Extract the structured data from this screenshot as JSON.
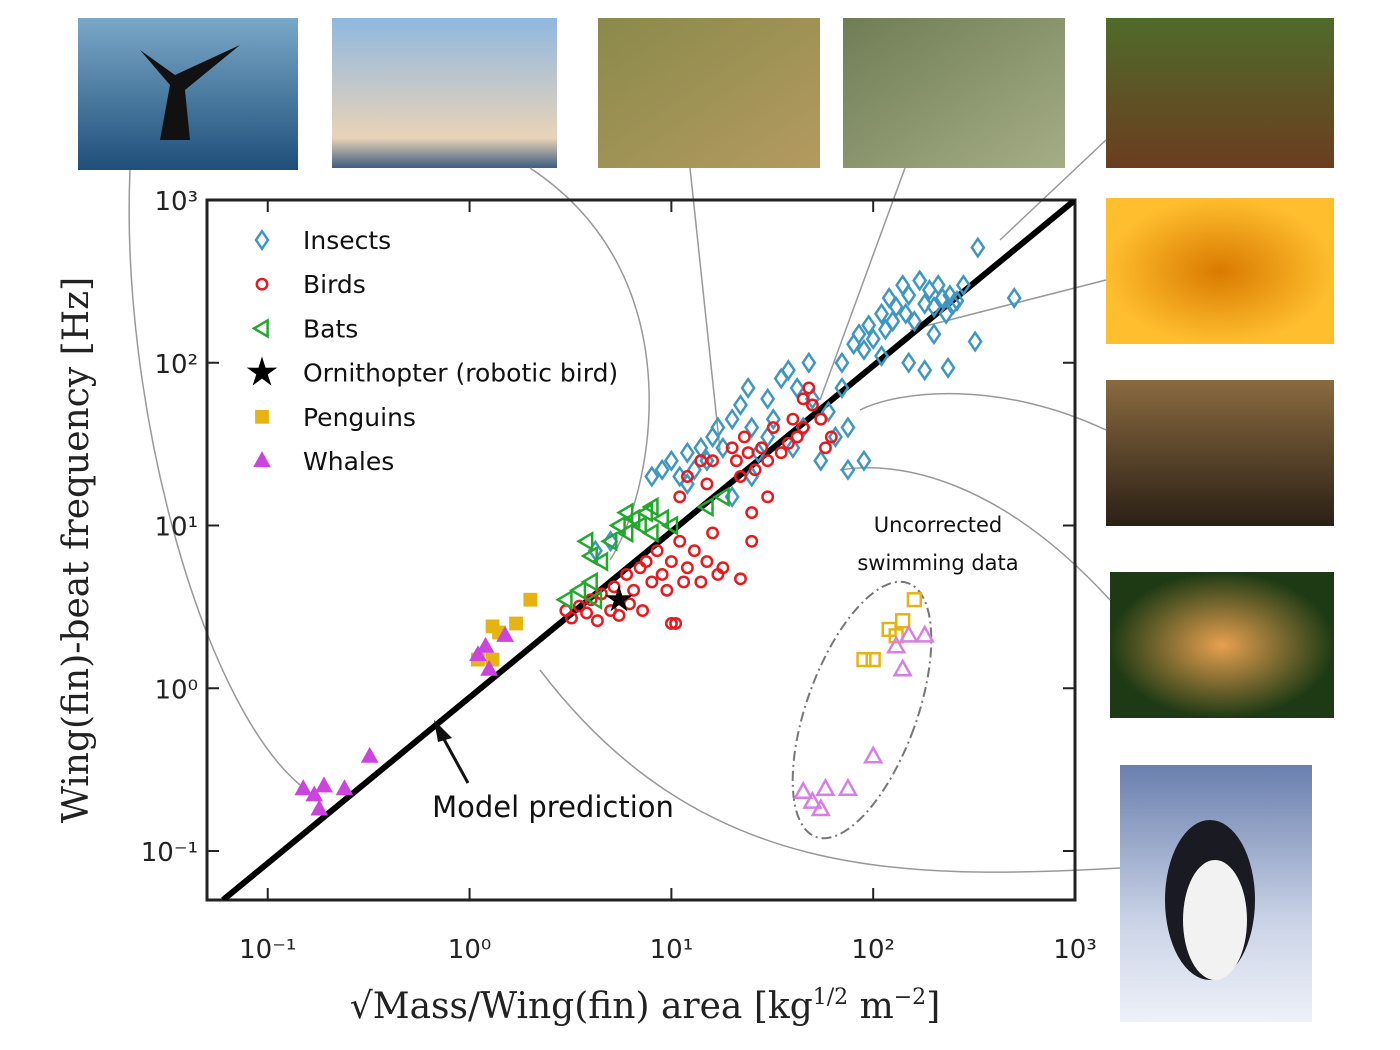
{
  "chart_data": {
    "type": "scatter",
    "x_label": [
      "√Mass/Wing(fin) area [kg",
      "1/2",
      " m",
      "−2",
      "]"
    ],
    "y_label": "Wing(fin)-beat frequency [Hz]",
    "log_x": true,
    "log_y": true,
    "xlim": [
      0.05,
      1000
    ],
    "ylim": [
      0.05,
      1000
    ],
    "xticks": [
      {
        "value": 0.1,
        "label": "10⁻¹"
      },
      {
        "value": 1,
        "label": "10⁰"
      },
      {
        "value": 10,
        "label": "10¹"
      },
      {
        "value": 100,
        "label": "10²"
      },
      {
        "value": 1000,
        "label": "10³"
      }
    ],
    "yticks": [
      {
        "value": 0.1,
        "label": "10⁻¹"
      },
      {
        "value": 1,
        "label": "10⁰"
      },
      {
        "value": 10,
        "label": "10¹"
      },
      {
        "value": 100,
        "label": "10²"
      },
      {
        "value": 1000,
        "label": "10³"
      }
    ],
    "legend": "upper left",
    "series": [
      {
        "name": "Insects",
        "color": "#3d97c2",
        "marker": "diamond",
        "filled": false,
        "x": [
          5,
          4.2,
          9,
          10,
          11,
          12,
          13,
          14,
          15,
          16,
          17,
          18,
          20,
          22,
          24,
          25,
          27,
          30,
          32,
          35,
          38,
          40,
          42,
          45,
          48,
          50,
          55,
          60,
          65,
          70,
          75,
          80,
          85,
          90,
          95,
          100,
          110,
          115,
          120,
          125,
          130,
          140,
          145,
          150,
          160,
          170,
          180,
          190,
          200,
          210,
          220,
          230,
          240,
          250,
          260,
          280,
          235,
          320,
          330,
          500,
          150,
          200,
          180,
          20,
          25,
          12,
          30,
          8,
          70,
          110,
          75,
          90
        ],
        "values": [
          8,
          7,
          22,
          25,
          20,
          28,
          22,
          30,
          25,
          35,
          40,
          30,
          45,
          55,
          70,
          40,
          28,
          60,
          45,
          80,
          90,
          30,
          70,
          40,
          100,
          60,
          25,
          50,
          35,
          100,
          40,
          130,
          150,
          120,
          170,
          140,
          200,
          160,
          250,
          180,
          220,
          300,
          200,
          260,
          180,
          320,
          230,
          280,
          220,
          300,
          250,
          200,
          260,
          230,
          240,
          300,
          93,
          135,
          510,
          250,
          100,
          150,
          90,
          15,
          20,
          18,
          35,
          20,
          70,
          110,
          22,
          25
        ]
      },
      {
        "name": "Birds",
        "color": "#e8191f",
        "marker": "circle",
        "filled": false,
        "x": [
          3,
          3.2,
          3.5,
          3.8,
          4,
          4.3,
          4.5,
          5,
          5.2,
          5.5,
          6,
          6.2,
          6.5,
          7,
          7.2,
          7.5,
          8,
          8.5,
          9,
          9.5,
          10,
          10.5,
          11,
          11.5,
          12,
          13,
          14,
          15,
          16,
          17,
          18,
          20,
          21,
          22,
          23,
          24,
          25,
          26,
          28,
          30,
          32,
          35,
          38,
          40,
          42,
          45,
          48,
          50,
          55,
          58,
          62,
          11,
          12,
          14,
          15,
          22,
          25,
          10,
          16,
          30,
          45
        ],
        "values": [
          3,
          2.7,
          3.2,
          2.9,
          3.5,
          2.6,
          3.8,
          3,
          4.2,
          2.8,
          5,
          3.3,
          4,
          5.5,
          3,
          6,
          4.5,
          7,
          5,
          4,
          6,
          2.5,
          8,
          4.5,
          5.5,
          7,
          4.5,
          6,
          9,
          5,
          5.5,
          30,
          25,
          20,
          35,
          28,
          12,
          22,
          30,
          25,
          40,
          28,
          32,
          45,
          35,
          60,
          70,
          55,
          45,
          30,
          35,
          15,
          20,
          25,
          18,
          4.7,
          8,
          2.5,
          25,
          15,
          40
        ]
      },
      {
        "name": "Bats",
        "color": "#22a82c",
        "marker": "triangle-left",
        "filled": false,
        "x": [
          3,
          3.5,
          4,
          4.2,
          4.5,
          5,
          5.5,
          6,
          6.5,
          7,
          7.5,
          8,
          9,
          10,
          4,
          3.8,
          18,
          15,
          6,
          8
        ],
        "values": [
          3.5,
          4,
          4.5,
          3.5,
          6,
          8,
          10,
          12,
          11,
          10,
          12,
          9,
          11,
          10,
          6.5,
          8,
          15,
          13,
          9,
          13
        ]
      },
      {
        "name": "Ornithopter (robotic bird)",
        "color": "#000000",
        "marker": "star",
        "filled": true,
        "x": [
          5.5
        ],
        "values": [
          3.5
        ]
      },
      {
        "name": "Penguins",
        "color": "#e6b412",
        "marker": "square",
        "filled": true,
        "x": [
          1.1,
          1.4,
          1.3,
          1.7,
          2,
          1.3
        ],
        "values": [
          1.5,
          2.2,
          2.4,
          2.5,
          3.5,
          1.5
        ]
      },
      {
        "name": "Whales",
        "color": "#cc44e0",
        "marker": "triangle",
        "filled": true,
        "x": [
          0.15,
          0.17,
          0.18,
          0.24,
          0.32,
          0.19,
          1.2,
          1.25,
          1.5,
          1.1
        ],
        "values": [
          0.24,
          0.22,
          0.18,
          0.24,
          0.38,
          0.25,
          1.8,
          1.3,
          2.1,
          1.6
        ]
      }
    ],
    "swimming_data": {
      "label": [
        "Uncorrected",
        "swimming data"
      ],
      "series": [
        {
          "color": "#e6b412",
          "marker": "square",
          "filled": false,
          "x": [
            120,
            140,
            160,
            90,
            100,
            130
          ],
          "values": [
            2.3,
            2.6,
            3.5,
            1.5,
            1.5,
            2.1
          ]
        },
        {
          "color": "#d77fe6",
          "marker": "triangle",
          "filled": false,
          "x": [
            45,
            50,
            55,
            58,
            75,
            100,
            130,
            140,
            150,
            180
          ],
          "values": [
            0.23,
            0.2,
            0.18,
            0.24,
            0.24,
            0.38,
            1.8,
            1.3,
            2.1,
            2.1
          ]
        }
      ]
    },
    "model_line": {
      "label": "Model prediction",
      "color": "#000000",
      "x": [
        0.06,
        1000
      ],
      "values": [
        0.05,
        1000
      ]
    }
  }
}
